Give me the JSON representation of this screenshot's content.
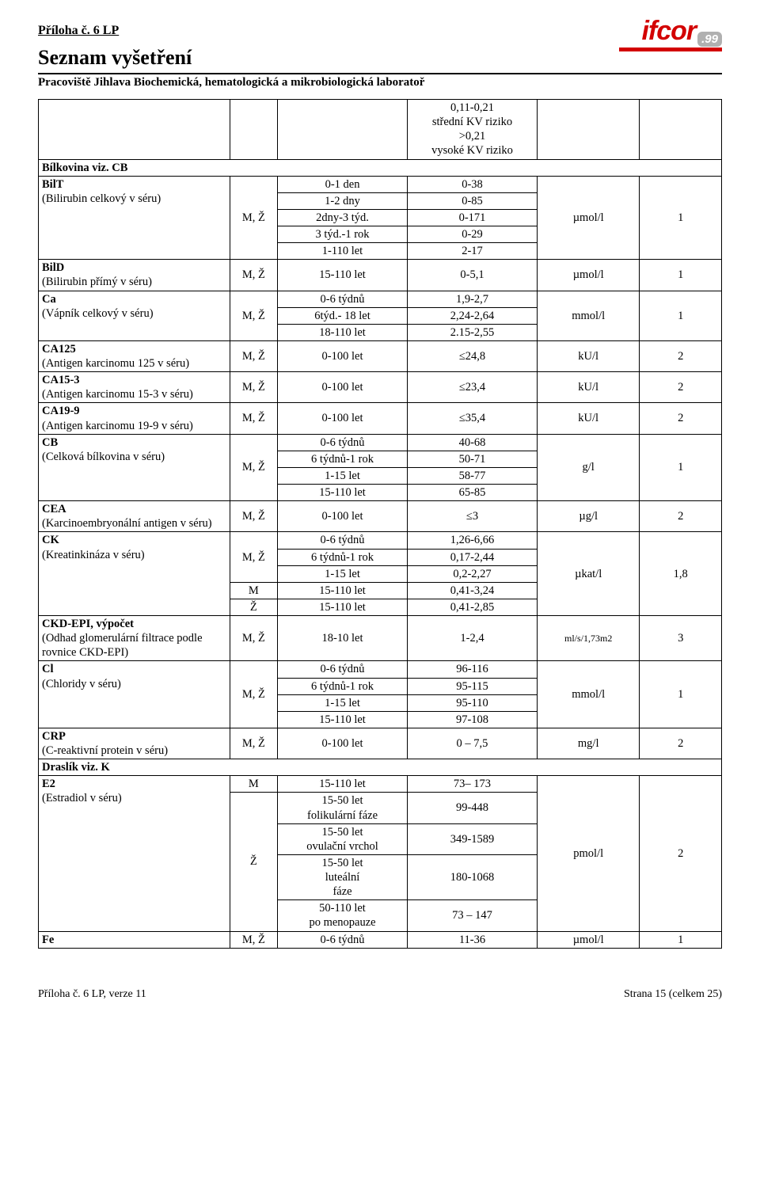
{
  "header": {
    "attachment": "Příloha č. 6 LP",
    "title": "Seznam vyšetření",
    "subtitle": "Pracoviště Jihlava Biochemická, hematologická a mikrobiologická laboratoř",
    "logo_main": "ifcor",
    "logo_sub": ".99"
  },
  "colors": {
    "red": "#d30000",
    "grey": "#b0b0b0"
  },
  "rows": [
    {
      "name_html": "<b>Bílkovina viz. CB</b>",
      "nameSpan": 1,
      "sex": "",
      "age": "",
      "val": "0,11-0,21 střední KV riziko >0,21 vysoké KV riziko",
      "unit": "",
      "n": "",
      "multiline_val": [
        "0,11-0,21",
        "střední KV riziko",
        ">0,21",
        "vysoké KV riziko"
      ],
      "pretext": true
    },
    {
      "name_html": "<b>BilT</b><br>(Bilirubin celkový v séru)",
      "nameSpan": 5,
      "sex": "M, Ž",
      "sexSpan": 5,
      "sub": [
        {
          "age": "0-1 den",
          "val": "0-38"
        },
        {
          "age": "1-2 dny",
          "val": "0-85"
        },
        {
          "age": "2dny-3 týd.",
          "val": "0-171"
        },
        {
          "age": "3 týd.-1 rok",
          "val": "0-29"
        },
        {
          "age": "1-110 let",
          "val": "2-17"
        }
      ],
      "unit": "µmol/l",
      "unitSpan": 5,
      "n": "1",
      "nSpan": 5
    },
    {
      "name_html": "<b>BilD</b><br>(Bilirubin přímý v séru)",
      "sex": "M, Ž",
      "age": "15-110 let",
      "val": "0-5,1",
      "unit": "µmol/l",
      "n": "1"
    },
    {
      "name_html": "<b>Ca</b><br>(Vápník celkový v séru)",
      "nameSpan": 3,
      "sex": "M, Ž",
      "sexSpan": 3,
      "sub": [
        {
          "age": "0-6 týdnů",
          "val": "1,9-2,7"
        },
        {
          "age": "6týd.- 18 let",
          "val": "2,24-2,64"
        },
        {
          "age": "18-110 let",
          "val": "2.15-2,55"
        }
      ],
      "unit": "mmol/l",
      "unitSpan": 3,
      "n": "1",
      "nSpan": 3
    },
    {
      "name_html": "<b>CA125</b><br>(Antigen karcinomu 125 v séru)",
      "sex": "M, Ž",
      "age": "0-100 let",
      "val": "≤24,8",
      "unit": "kU/l",
      "n": "2"
    },
    {
      "name_html": "<b>CA15-3</b><br>(Antigen karcinomu 15-3 v séru)",
      "sex": "M, Ž",
      "age": "0-100 let",
      "val": "≤23,4",
      "unit": "kU/l",
      "n": "2"
    },
    {
      "name_html": "<b>CA19-9</b><br>(Antigen karcinomu 19-9 v séru)",
      "sex": "M, Ž",
      "age": "0-100 let",
      "val": "≤35,4",
      "unit": "kU/l",
      "n": "2"
    },
    {
      "name_html": "<b>CB</b><br>(Celková bílkovina v séru)",
      "nameSpan": 4,
      "sex": "M, Ž",
      "sexSpan": 4,
      "sub": [
        {
          "age": "0-6 týdnů",
          "val": "40-68"
        },
        {
          "age": "6 týdnů-1 rok",
          "val": "50-71"
        },
        {
          "age": "1-15 let",
          "val": "58-77"
        },
        {
          "age": "15-110 let",
          "val": "65-85"
        }
      ],
      "unit": "g/l",
      "unitSpan": 4,
      "n": "1",
      "nSpan": 4
    },
    {
      "name_html": "<b>CEA</b><br>(Karcinoembryonální antigen v séru)",
      "sex": "M, Ž",
      "age": "0-100 let",
      "val": "≤3",
      "unit": "µg/l",
      "n": "2"
    },
    {
      "name_html": "<b>CK</b><br>(Kreatinkináza v séru)",
      "nameSpan": 5,
      "subRows": [
        {
          "sex": "M, Ž",
          "sexSpan": 3,
          "age": "0-6 týdnů",
          "val": "1,26-6,66"
        },
        {
          "age": "6 týdnů-1 rok",
          "val": "0,17-2,44"
        },
        {
          "age": "1-15 let",
          "val": "0,2-2,27"
        },
        {
          "sex": "M",
          "age": "15-110 let",
          "val": "0,41-3,24"
        },
        {
          "sex": "Ž",
          "age": "15-110 let",
          "val": "0,41-2,85"
        }
      ],
      "unit": "µkat/l",
      "unitSpan": 5,
      "n": "1,8",
      "nSpan": 5
    },
    {
      "name_html": "<b>CKD-EPI, výpočet</b><br>(Odhad glomerulární filtrace podle rovnice CKD-EPI)",
      "sex": "M, Ž",
      "age": "18-10 let",
      "val": "1-2,4",
      "unit": "ml/s/1,73m2",
      "unitSmall": true,
      "n": "3"
    },
    {
      "name_html": "<b>Cl</b><br>(Chloridy v séru)",
      "nameSpan": 4,
      "sex": "M, Ž",
      "sexSpan": 4,
      "sub": [
        {
          "age": "0-6 týdnů",
          "val": "96-116"
        },
        {
          "age": "6 týdnů-1 rok",
          "val": "95-115"
        },
        {
          "age": "1-15 let",
          "val": "95-110"
        },
        {
          "age": "15-110 let",
          "val": "97-108"
        }
      ],
      "unit": "mmol/l",
      "unitSpan": 4,
      "n": "1",
      "nSpan": 4
    },
    {
      "name_html": "<b>CRP</b><br>(C-reaktivní protein v séru)",
      "sex": "M, Ž",
      "age": "0-100 let",
      "val": "0 – 7,5",
      "unit": "mg/l",
      "n": "2"
    },
    {
      "name_html": "<b>Draslík viz. K</b>",
      "fullRow": true
    },
    {
      "name_html": "<b>E2</b><br>(Estradiol v séru)",
      "nameSpan": 5,
      "subRows": [
        {
          "sex": "M",
          "age": "15-110 let",
          "val": "73– 173"
        },
        {
          "sex": "Ž",
          "sexSpan": 4,
          "age": "15-50 let folikulární fáze",
          "ageMulti": [
            "15-50 let",
            "folikulární fáze"
          ],
          "val": "99-448"
        },
        {
          "age": "15-50 let ovulační vrchol",
          "ageMulti": [
            "15-50 let",
            "ovulační vrchol"
          ],
          "val": "349-1589"
        },
        {
          "age": "15-50 let luteální fáze",
          "ageMulti": [
            "15-50 let",
            "luteální",
            "fáze"
          ],
          "val": "180-1068"
        },
        {
          "age": "50-110 let po menopauze",
          "ageMulti": [
            "50-110 let",
            "po menopauze"
          ],
          "val": "73 – 147"
        }
      ],
      "unit": "pmol/l",
      "unitSpan": 5,
      "n": "2",
      "nSpan": 5
    },
    {
      "name_html": "<b>Fe</b>",
      "sex": "M, Ž",
      "age": "0-6 týdnů",
      "val": "11-36",
      "unit": "µmol/l",
      "n": "1"
    }
  ],
  "footer": {
    "left": "Příloha č. 6 LP, verze 11",
    "right": "Strana 15 (celkem 25)"
  }
}
